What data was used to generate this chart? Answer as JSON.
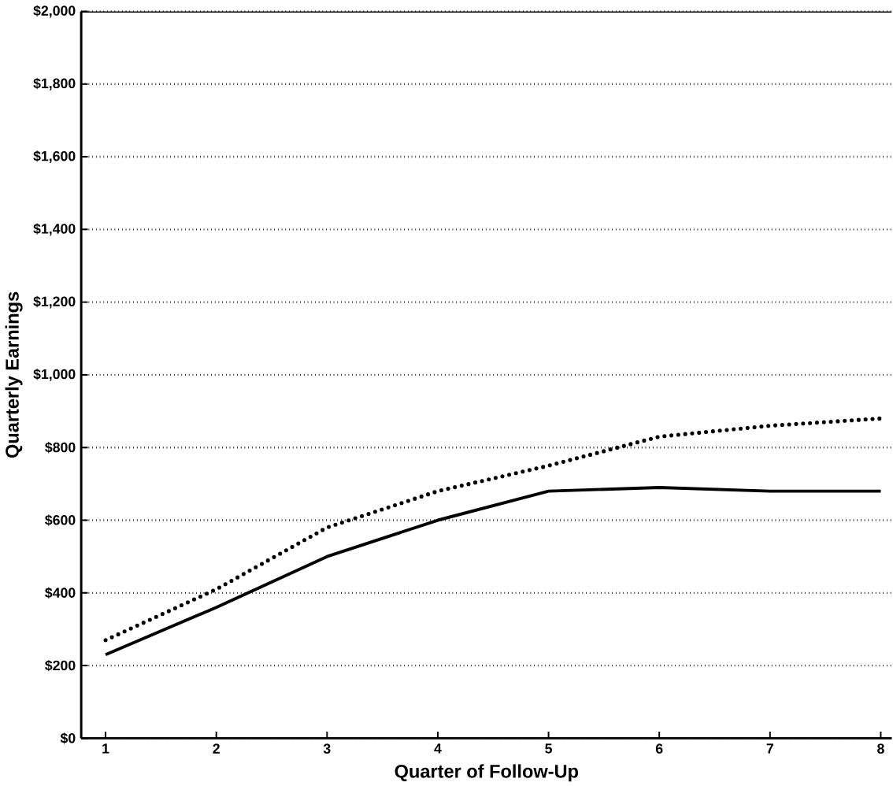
{
  "chart_data": {
    "type": "line",
    "xlabel": "Quarter of Follow-Up",
    "ylabel": "Quarterly Earnings",
    "x": [
      1,
      2,
      3,
      4,
      5,
      6,
      7,
      8
    ],
    "series": [
      {
        "color": "#000000",
        "line_style": "solid",
        "values": [
          230,
          360,
          500,
          600,
          680,
          690,
          680,
          680
        ]
      },
      {
        "color": "#000000",
        "line_style": "dotted",
        "values": [
          270,
          410,
          580,
          680,
          750,
          830,
          860,
          880
        ]
      }
    ],
    "xlim": [
      0.78,
      8.1
    ],
    "ylim": [
      0,
      2000
    ],
    "xticks": [
      1,
      2,
      3,
      4,
      5,
      6,
      7,
      8
    ],
    "yticks": [
      {
        "value": 0,
        "label": "$0"
      },
      {
        "value": 200,
        "label": "$200"
      },
      {
        "value": 400,
        "label": "$400"
      },
      {
        "value": 600,
        "label": "$600"
      },
      {
        "value": 800,
        "label": "$800"
      },
      {
        "value": 1000,
        "label": "$1,000"
      },
      {
        "value": 1200,
        "label": "$1,200"
      },
      {
        "value": 1400,
        "label": "$1,400"
      },
      {
        "value": 1600,
        "label": "$1,600"
      },
      {
        "value": 1800,
        "label": "$1,800"
      },
      {
        "value": 2000,
        "label": "$2,000"
      }
    ],
    "grid": "y",
    "marker": "none"
  }
}
